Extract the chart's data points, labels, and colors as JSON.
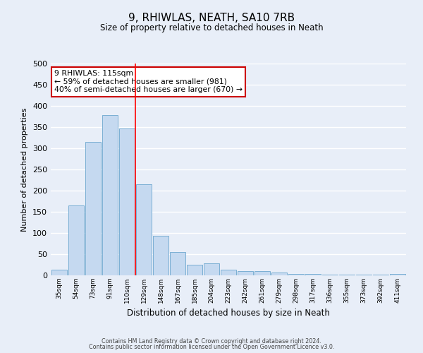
{
  "title": "9, RHIWLAS, NEATH, SA10 7RB",
  "subtitle": "Size of property relative to detached houses in Neath",
  "xlabel": "Distribution of detached houses by size in Neath",
  "ylabel": "Number of detached properties",
  "categories": [
    "35sqm",
    "54sqm",
    "73sqm",
    "91sqm",
    "110sqm",
    "129sqm",
    "148sqm",
    "167sqm",
    "185sqm",
    "204sqm",
    "223sqm",
    "242sqm",
    "261sqm",
    "279sqm",
    "298sqm",
    "317sqm",
    "336sqm",
    "355sqm",
    "373sqm",
    "392sqm",
    "411sqm"
  ],
  "values": [
    13,
    165,
    315,
    378,
    347,
    215,
    93,
    55,
    25,
    29,
    13,
    10,
    10,
    7,
    4,
    4,
    1,
    1,
    1,
    1,
    3
  ],
  "bar_color": "#c5d9f0",
  "bar_edge_color": "#7bafd4",
  "annotation_line1": "9 RHIWLAS: 115sqm",
  "annotation_line2": "← 59% of detached houses are smaller (981)",
  "annotation_line3": "40% of semi-detached houses are larger (670) →",
  "annotation_box_facecolor": "#ffffff",
  "annotation_box_edgecolor": "#cc0000",
  "red_line_bin_index": 4,
  "ylim": [
    0,
    500
  ],
  "yticks": [
    0,
    50,
    100,
    150,
    200,
    250,
    300,
    350,
    400,
    450,
    500
  ],
  "background_color": "#e8eef8",
  "grid_color": "#ffffff",
  "footer_line1": "Contains HM Land Registry data © Crown copyright and database right 2024.",
  "footer_line2": "Contains public sector information licensed under the Open Government Licence v3.0."
}
